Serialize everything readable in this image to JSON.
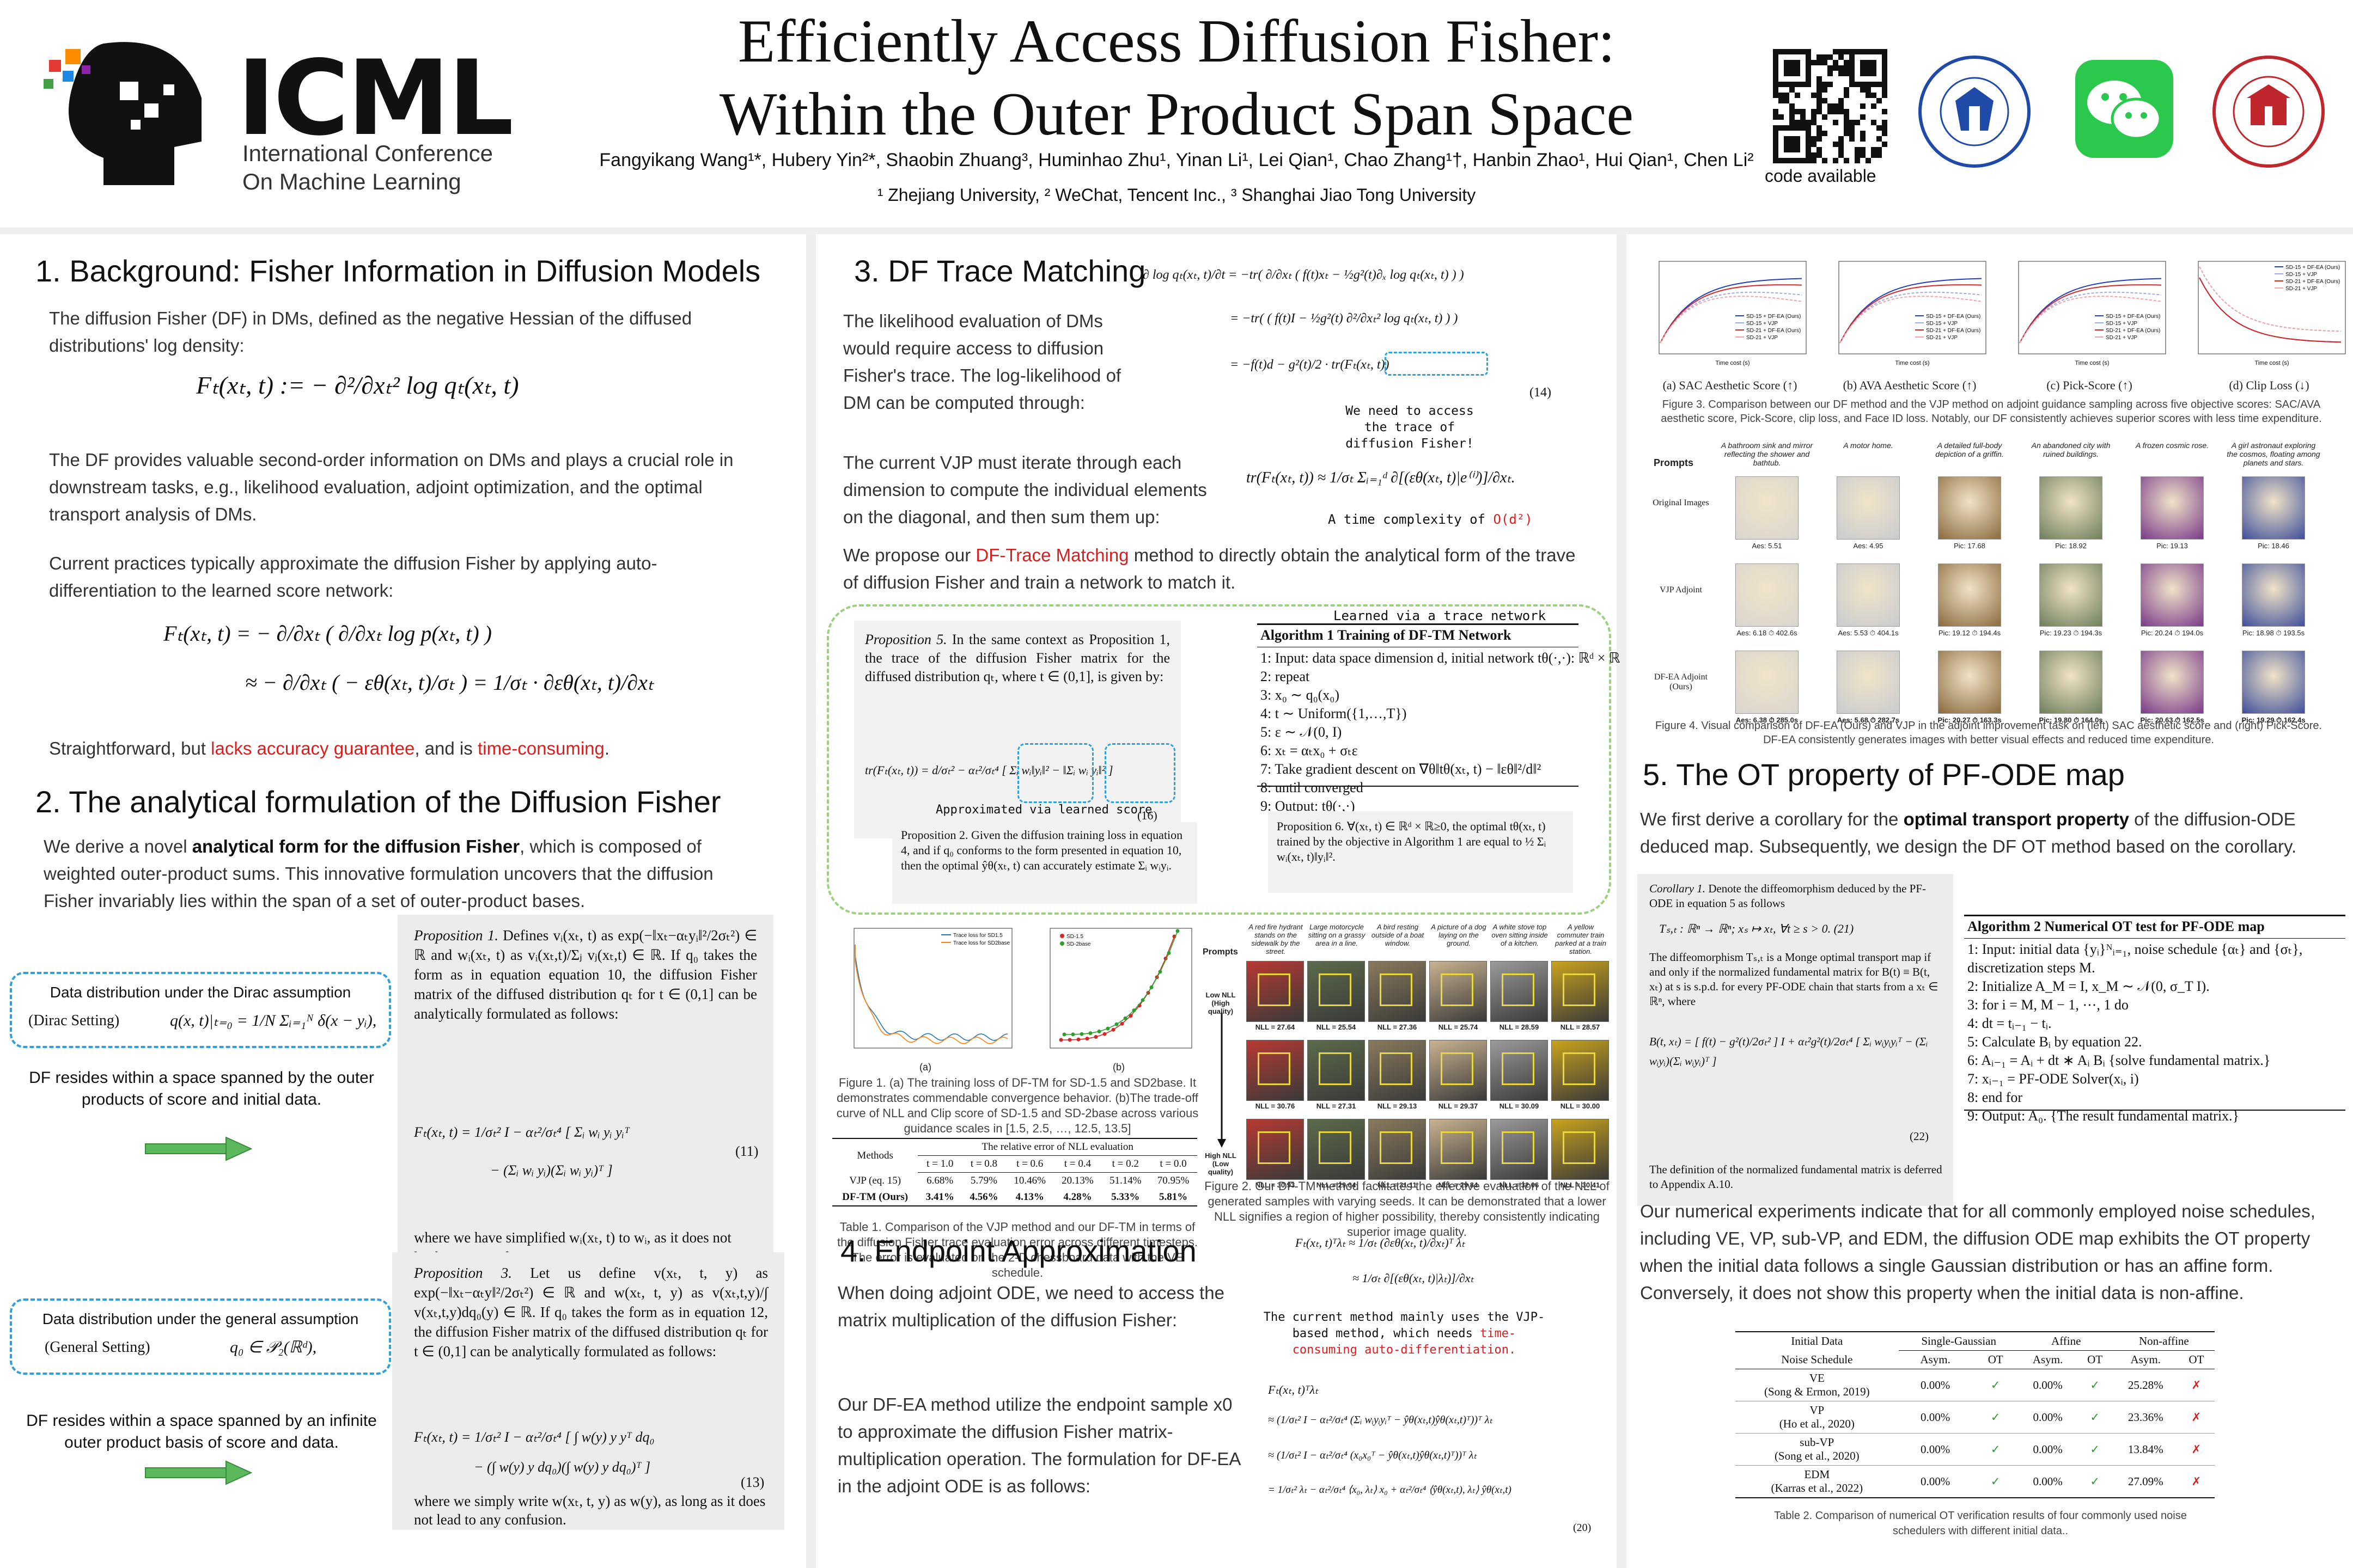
{
  "header": {
    "title_line1": "Efficiently Access Diffusion Fisher:",
    "title_line2": "Within the Outer Product Span Space",
    "authors": "Fangyikang Wang¹*, Hubery Yin²*, Shaobin Zhuang³, Huminhao Zhu¹, Yinan Li¹, Lei Qian¹, Chao Zhang¹†, Hanbin Zhao¹, Hui Qian¹, Chen Li²",
    "affiliations": "¹ Zhejiang University, ² WeChat, Tencent Inc., ³ Shanghai Jiao Tong University",
    "logo_word": "ICML",
    "logo_sub1": "International Conference",
    "logo_sub2": "On Machine Learning",
    "code_label": "code available"
  },
  "sec1": {
    "title": "1. Background: Fisher Information in Diffusion Models",
    "p1": "The diffusion Fisher (DF) in DMs, defined as the negative Hessian of the diffused distributions' log density:",
    "eq1": "Fₜ(xₜ, t) := − ∂²/∂xₜ² log qₜ(xₜ, t)",
    "p2": "The DF provides valuable second-order information on DMs and plays a crucial role in downstream tasks, e.g., likelihood evaluation, adjoint optimization, and the optimal transport analysis of DMs.",
    "p3": "Current practices typically approximate the diffusion Fisher by applying auto-differentiation to the learned score network:",
    "eq2a": "Fₜ(xₜ, t) = − ∂/∂xₜ ( ∂/∂xₜ log p(xₜ, t) )",
    "eq2b": "≈ − ∂/∂xₜ ( − εθ(xₜ, t)/σₜ ) = 1/σₜ · ∂εθ(xₜ, t)/∂xₜ",
    "p4_pre": "Straightforward, but ",
    "p4_red1": "lacks accuracy guarantee",
    "p4_mid": ", and is ",
    "p4_red2": "time-consuming",
    "p4_end": "."
  },
  "sec2": {
    "title": "2. The analytical formulation of the Diffusion Fisher",
    "p1_pre": "We derive a novel ",
    "p1_bold": "analytical form for the diffusion Fisher",
    "p1_post": ", which is composed of weighted outer-product sums. This innovative formulation uncovers that the diffusion Fisher invariably lies within the span of a set of outer-product bases.",
    "box1_title": "Data distribution under the Dirac assumption",
    "box1_label": "(Dirac Setting)",
    "box1_eq": "q(x, t)|ₜ₌₀ = 1/N Σᵢ₌₁ᴺ δ(x − yᵢ),",
    "box1_note": "DF resides within a space spanned by the outer products of score and initial data.",
    "box2_title": "Data distribution under the general assumption",
    "box2_label": "(General Setting)",
    "box2_eq": "q₀ ∈ 𝒫₂(ℝᵈ),",
    "box2_note": "DF resides within a space spanned by an infinite outer product basis of score and data.",
    "prop1_head": "Proposition 1.",
    "prop1_text": "Defines vᵢ(xₜ, t) as exp(−‖xₜ−αₜyᵢ‖²/2σₜ²) ∈ ℝ and wᵢ(xₜ, t) as vᵢ(xₜ,t)/Σⱼ vⱼ(xₜ,t) ∈ ℝ. If q₀ takes the form as in equation equation 10, the diffusion Fisher matrix of the diffused distribution qₜ for t ∈ (0,1] can be analytically formulated as follows:",
    "prop1_eq1": "Fₜ(xₜ, t) = 1/σₜ² I − αₜ²/σₜ⁴ [ Σᵢ wᵢ yᵢ yᵢᵀ",
    "prop1_eq2": "− (Σᵢ wᵢ yᵢ)(Σᵢ wᵢ yᵢ)ᵀ ]",
    "prop1_num": "(11)",
    "prop1_note": "where we have simplified wᵢ(xₜ, t) to wᵢ, as it does not lead to any confusion.",
    "prop3_head": "Proposition 3.",
    "prop3_text": "Let us define v(xₜ, t, y) as exp(−‖xₜ−αₜy‖²/2σₜ²) ∈ ℝ and w(xₜ, t, y) as v(xₜ,t,y)/∫ v(xₜ,t,y)dq₀(y) ∈ ℝ. If q₀ takes the form as in equation 12, the diffusion Fisher matrix of the diffused distribution qₜ for t ∈ (0,1] can be analytically formulated as follows:",
    "prop3_eq1": "Fₜ(xₜ, t) = 1/σₜ² I − αₜ²/σₜ⁴ [ ∫ w(y) y yᵀ dq₀",
    "prop3_eq2": "− (∫ w(y) y dq₀)(∫ w(y) y dq₀)ᵀ ]",
    "prop3_num": "(13)",
    "prop3_note": "where we simply write w(xₜ, t, y) as w(y), as long as it does not lead to any confusion."
  },
  "sec3": {
    "title": "3. DF Trace Matching",
    "p1": "The likelihood evaluation of DMs would require access to diffusion Fisher's trace. The log-likelihood of DM can be computed through:",
    "eq14a": "∂ log qₜ(xₜ, t)/∂t = −tr( ∂/∂xₜ ( f(t)xₜ − ½g²(t)∂ₓ log qₜ(xₜ, t) ) )",
    "eq14b": "= −tr( ( f(t)I − ½g²(t) ∂²/∂xₜ² log qₜ(xₜ, t) ) )",
    "eq14c": "= −f(t)d − g²(t)/2 · tr(Fₜ(xₜ, t))",
    "eq14_num": "(14)",
    "need_note": "We need to access the trace of diffusion Fisher!",
    "p2": "The current VJP must iterate through each dimension to compute the individual elements on the diagonal, and then sum them up:",
    "eq_vjp": "tr(Fₜ(xₜ, t)) ≈ 1/σₜ Σᵢ₌₁ᵈ ∂[(εθ(xₜ, t)|e⁽ⁱ⁾)]/∂xₜ.",
    "complexity_pre": "A time complexity of ",
    "complexity_red": "O(d²)",
    "p3_pre": "We propose our ",
    "p3_red": "DF-Trace Matching",
    "p3_post": " method to directly obtain the analytical form of the trave of diffusion Fisher and train a network to match it.",
    "learned_label": "Learned via a trace network",
    "prop5_head": "Proposition 5.",
    "prop5_text": "In the same context as Proposition 1, the trace of the diffusion Fisher matrix for the diffused distribution qₜ, where t ∈ (0,1], is given by:",
    "prop5_eq": "tr(Fₜ(xₜ, t)) = d/σₜ² − αₜ²/σₜ⁴ [ Σᵢ wᵢ‖yᵢ‖² − ‖Σᵢ wᵢ yᵢ‖² ]",
    "prop5_num": "(16)",
    "approx_label": "Approximated via learned score",
    "algo1_title": "Algorithm 1 Training of DF-TM Network",
    "algo1_lines": [
      "1: Input: data space dimension d, initial network tθ(·,·): ℝᵈ × ℝ → ℝ, noise schedule {αₜ} and {σₜ};",
      "2: repeat",
      "3:   x₀ ∼ q₀(x₀)",
      "4:   t ∼ Uniform({1,…,T})",
      "5:   ε ∼ 𝒩(0, I)",
      "6:   xₜ = αₜx₀ + σₜε",
      "7:   Take gradient descent on ∇θ‖tθ(xₜ, t) − ‖εθ‖²/d‖²",
      "8: until converged",
      "9: Output: tθ(·,·)"
    ],
    "prop2_text": "Proposition 2. Given the diffusion training loss in equation 4, and if q₀ conforms to the form presented in equation 10, then the optimal ŷθ(xₜ, t) can accurately estimate Σᵢ wᵢyᵢ.",
    "prop6_text": "Proposition 6. ∀(xₜ, t) ∈ ℝᵈ × ℝ≥0, the optimal tθ(xₜ, t) trained by the objective in Algorithm 1 are equal to ½ Σᵢ wᵢ(xₜ, t)‖yᵢ‖².",
    "fig1_caption": "Figure 1. (a) The training loss of DF-TM for SD-1.5 and SD2base. It demonstrates commendable convergence behavior. (b)The trade-off curve of NLL and Clip score of SD-1.5 and SD-2base across various guidance scales in [1.5, 2.5, …, 12.5, 13.5]",
    "fig1_sub_a": "(a)",
    "fig1_sub_b": "(b)",
    "fig1a_legend": [
      "Trace loss for SD1.5",
      "Trace loss for SD2base"
    ],
    "fig1b_legend": [
      "SD-1.5",
      "SD-2base"
    ],
    "table1": {
      "header_top": "The relative error of NLL evaluation",
      "method_col": "Methods",
      "cols": [
        "t = 1.0",
        "t = 0.8",
        "t = 0.6",
        "t = 0.4",
        "t = 0.2",
        "t = 0.0"
      ],
      "rows": [
        {
          "method": "VJP (eq. 15)",
          "values": [
            "6.68%",
            "5.79%",
            "10.46%",
            "20.13%",
            "51.14%",
            "70.95%"
          ]
        },
        {
          "method": "DF-TM (Ours)",
          "values": [
            "3.41%",
            "4.56%",
            "4.13%",
            "4.28%",
            "5.33%",
            "5.81%"
          ]
        }
      ]
    },
    "table1_caption": "Table 1. Comparison of the VJP method and our DF-TM in terms of the diffusion Fisher trace evaluation error across different timesteps. The error is evaluated on the 2-D chessboard data with the VE schedule.",
    "fig2": {
      "prompt_label": "Prompts",
      "low_nll": "Low NLL (High quality)",
      "high_nll": "High NLL (Low quality)",
      "prompts": [
        "A red fire hydrant stands on the sidewalk by the street.",
        "Large motorcycle sitting on a grassy area in a line.",
        "A bird resting outside of a boat window.",
        "A picture of a dog laying on the ground.",
        "A white stove top oven sitting inside of a kitchen.",
        "A yellow commuter train parked at a train station."
      ],
      "rows": [
        [
          "NLL = 27.64",
          "NLL = 25.54",
          "NLL = 27.36",
          "NLL = 25.74",
          "NLL = 28.59",
          "NLL = 28.57"
        ],
        [
          "NLL = 30.76",
          "NLL = 27.31",
          "NLL = 29.13",
          "NLL = 29.37",
          "NLL = 30.09",
          "NLL = 30.00"
        ],
        [
          "NLL = 30.93",
          "NLL = 29.04",
          "NLL = 31.11",
          "NLL = 29.84",
          "NLL = 32.06",
          "NLL = 30.41"
        ]
      ],
      "tile_colors": [
        "#b83a32",
        "#5d6b4a",
        "#8a7a5c",
        "#c9b28e",
        "#9a9a9a",
        "#c8a21c"
      ]
    },
    "fig2_caption": "Figure 2. Our DF-TM method facilitates the effective evaluation of the NLL of generated samples with varying seeds. It can be demonstrated that a lower NLL signifies a region of higher possibility, thereby consistently indicating superior image quality."
  },
  "sec4": {
    "title": "4. Endpoint Approximation",
    "p1": "When doing adjoint ODE, we need to access the matrix multiplication of the diffusion Fisher:",
    "eq_top1": "Fₜ(xₜ, t)ᵀλₜ ≈ 1/σₜ (∂εθ(xₜ, t)/∂xₜ)ᵀ λₜ",
    "eq_top2": "≈ 1/σₜ ∂[(εθ(xₜ, t)|λₜ)]/∂xₜ",
    "vjp_note_pre": "The current method mainly uses the VJP-based method, which needs ",
    "vjp_note_red": "time-consuming auto-differentiation.",
    "p2": "Our DF-EA method utilize the endpoint sample x0 to approximate the diffusion Fisher matrix-multiplication operation. The formulation for DF-EA in the adjoint ODE is as follows:",
    "eq20a": "Fₜ(xₜ, t)ᵀλₜ",
    "eq20b": "≈ (1/σₜ² I − αₜ²/σₜ⁴ (Σᵢ wᵢyᵢyᵢᵀ − ŷθ(xₜ,t)ŷθ(xₜ,t)ᵀ))ᵀ λₜ",
    "eq20c": "≈ (1/σₜ² I − αₜ²/σₜ⁴ (x₀x₀ᵀ − ŷθ(xₜ,t)ŷθ(xₜ,t)ᵀ))ᵀ λₜ",
    "eq20d": "= 1/σₜ² λₜ − αₜ²/σₜ⁴ ⟨x₀, λₜ⟩ x₀ + αₜ²/σₜ⁴ ⟨ŷθ(xₜ,t), λₜ⟩ ŷθ(xₜ,t)",
    "eq20_num": "(20)"
  },
  "fig3": {
    "subcaptions": [
      "(a) SAC Aesthetic Score (↑)",
      "(b) AVA Aesthetic Score (↑)",
      "(c) Pick-Score (↑)",
      "(d) Clip Loss (↓)"
    ],
    "legend": [
      "SD-15 + DF-EA (Ours)",
      "SD-15 + VJP",
      "SD-21 + DF-EA (Ours)",
      "SD-21 + VJP"
    ],
    "xlabel": "Time cost (s)",
    "caption": "Figure 3. Comparison between our DF method and the VJP method on adjoint guidance sampling across five objective scores: SAC/AVA aesthetic score, Pick-Score, clip loss, and Face ID loss. Notably, our DF consistently achieves superior scores with less time expenditure."
  },
  "fig4": {
    "prompt_label": "Prompts",
    "row_labels": [
      "Original Images",
      "VJP Adjoint",
      "DF-EA Adjoint (Ours)"
    ],
    "prompts": [
      "A bathroom sink and mirror reflecting the shower and bathtub.",
      "A motor home.",
      "A detailed full-body depiction of a griffin.",
      "An abandoned city with ruined buildings.",
      "A frozen cosmic rose.",
      "A girl astronaut exploring the cosmos, floating among planets and stars."
    ],
    "scores": [
      [
        "Aes: 5.51",
        "Aes: 4.95",
        "Pic: 17.68",
        "Pic: 18.92",
        "Pic: 19.13",
        "Pic: 18.46"
      ],
      [
        "Aes: 6.18 ⏱ 402.6s",
        "Aes: 5.53 ⏱ 404.1s",
        "Pic: 19.12 ⏱ 194.4s",
        "Pic: 19.23 ⏱ 194.3s",
        "Pic: 20.24 ⏱ 194.0s",
        "Pic: 18.98 ⏱ 193.5s"
      ],
      [
        "Aes: 6.38 ⏱ 285.0s",
        "Aes: 5.68 ⏱ 282.7s",
        "Pic: 20.27 ⏱ 163.3s",
        "Pic: 19.80 ⏱ 164.0s",
        "Pic: 20.63 ⏱ 162.5s",
        "Pic: 19.29 ⏱ 162.4s"
      ]
    ],
    "tile_colors": [
      "#d9d6cf",
      "#c9cbd0",
      "#8b6a3d",
      "#6d7f5a",
      "#7a3a8a",
      "#3f4f9a"
    ],
    "caption": "Figure 4. Visual comparison of DF-EA (Ours) and VJP in the adjoint improvement task on (left) SAC aesthetic score and (right) Pick-Score. DF-EA consistently generates images with better visual effects and reduced time expenditure."
  },
  "sec5": {
    "title": "5. The OT property of PF-ODE map",
    "p1_pre": "We first derive a corollary for the ",
    "p1_bold": "optimal transport property",
    "p1_post": " of the diffusion-ODE deduced map. Subsequently, we design the DF OT method based on the corollary.",
    "cor_head": "Corollary 1.",
    "cor_text": "Denote the diffeomorphism deduced by the PF-ODE in equation 5 as follows",
    "cor_eq": "Tₛ,ₜ : ℝⁿ → ℝⁿ; xₛ ↦ xₜ,  ∀t ≥ s > 0.   (21)",
    "cor_text2": "The diffeomorphism Tₛ,ₜ is a Monge optimal transport map if and only if the normalized fundamental matrix for B(t) ≡ B(t, xₜ) at s is s.p.d. for every PF-ODE chain that starts from a xₜ ∈ ℝⁿ, where",
    "cor_eq2": "B(t, xₜ) = [ f(t) − g²(t)/2σₜ² ] I + αₜ²g²(t)/2σₜ⁴ [ Σᵢ wᵢyᵢyᵢᵀ − (Σᵢ wᵢyᵢ)(Σᵢ wᵢyᵢ)ᵀ ]",
    "cor_num": "(22)",
    "cor_note": "The definition of the normalized fundamental matrix is deferred to Appendix A.10.",
    "algo2_title": "Algorithm 2 Numerical OT test for PF-ODE map",
    "algo2_lines": [
      "1: Input: initial data {yᵢ}ᴺᵢ₌₁, noise schedule {αₜ} and {σₜ},",
      "    discretization steps M.",
      "2: Initialize A_M = I, x_M ∼ 𝒩(0, σ_T I).",
      "3: for i = M, M − 1, ⋯, 1 do",
      "4:   dt = tᵢ₋₁ − tᵢ.",
      "5:   Calculate Bᵢ by equation 22.",
      "6:   Aᵢ₋₁ = Aᵢ + dt ∗ Aᵢ Bᵢ   {solve fundamental matrix.}",
      "7:   xᵢ₋₁ = PF-ODE Solver(xᵢ, i)",
      "8: end for",
      "9: Output: A₀.          {The result fundamental matrix.}"
    ],
    "p2": "Our numerical experiments indicate that for all commonly employed noise schedules, including VE, VP, sub-VP, and EDM, the diffusion ODE map exhibits the OT property when the initial data follows a single Gaussian distribution or has an affine form. Conversely, it does not show this property when the initial data is non-affine.",
    "table2": {
      "h_initial": "Initial Data",
      "h_noise": "Noise Schedule",
      "groups": [
        "Single-Gaussian",
        "Affine",
        "Non-affine"
      ],
      "sub": [
        "Asym.",
        "OT"
      ],
      "rows": [
        {
          "name": "VE",
          "cite": "(Song & Ermon, 2019)",
          "v": [
            "0.00%",
            "✓",
            "0.00%",
            "✓",
            "25.28%",
            "✗"
          ]
        },
        {
          "name": "VP",
          "cite": "(Ho et al., 2020)",
          "v": [
            "0.00%",
            "✓",
            "0.00%",
            "✓",
            "23.36%",
            "✗"
          ]
        },
        {
          "name": "sub-VP",
          "cite": "(Song et al., 2020)",
          "v": [
            "0.00%",
            "✓",
            "0.00%",
            "✓",
            "13.84%",
            "✗"
          ]
        },
        {
          "name": "EDM",
          "cite": "(Karras et al., 2022)",
          "v": [
            "0.00%",
            "✓",
            "0.00%",
            "✓",
            "27.09%",
            "✗"
          ]
        }
      ]
    },
    "table2_caption": "Table 2. Comparison of numerical OT verification results of four commonly used noise schedulers with different initial data.."
  },
  "colors": {
    "accent_blue": "#2fa1d8",
    "accent_red": "#d61f1f",
    "green_arrow": "#5cb85c",
    "green_dash": "#9bd07f"
  }
}
